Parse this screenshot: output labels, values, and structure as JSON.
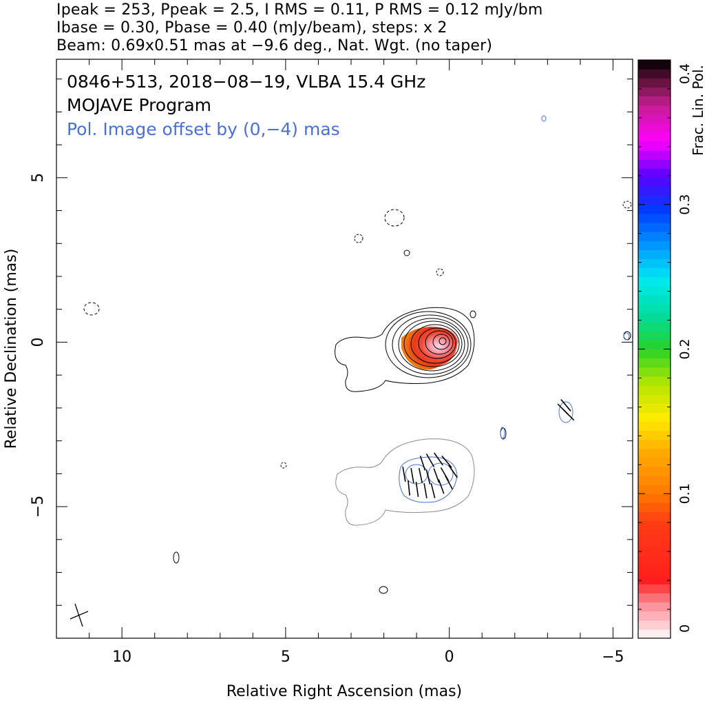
{
  "header": {
    "line1": "Ipeak = 253, Ppeak = 2.5, I RMS = 0.11, P RMS = 0.12 mJy/bm",
    "line2": "Ibase = 0.30, Pbase = 0.40 (mJy/beam), steps: x 2",
    "line3": "Beam: 0.69x0.51 mas at −9.6 deg., Nat. Wgt. (no taper)"
  },
  "annotations": {
    "line1": "0846+513, 2018−08−19, VLBA 15.4 GHz",
    "line2": "MOJAVE Program",
    "line3": "Pol. Image offset by (0,−4) mas",
    "line3_color": "#4a6fd6"
  },
  "chart_data": {
    "type": "contour",
    "xlabel": "Relative Right Ascension (mas)",
    "ylabel": "Relative Declination (mas)",
    "xlim": [
      12.0,
      -5.6
    ],
    "ylim": [
      -9.0,
      8.6
    ],
    "x_ticks": [
      {
        "value": 10,
        "label": "10"
      },
      {
        "value": 5,
        "label": "5"
      },
      {
        "value": 0,
        "label": "0"
      },
      {
        "value": -5,
        "label": "−5"
      }
    ],
    "y_ticks": [
      {
        "value": 5,
        "label": "5"
      },
      {
        "value": 0,
        "label": "0"
      },
      {
        "value": -5,
        "label": "−5"
      }
    ],
    "colorbar": {
      "label": "Frac. Lin. Pol.",
      "range": [
        0,
        0.4
      ],
      "ticks": [
        {
          "value": 0,
          "label": "0"
        },
        {
          "value": 0.1,
          "label": "0.1"
        },
        {
          "value": 0.2,
          "label": "0.2"
        },
        {
          "value": 0.3,
          "label": "0.3"
        },
        {
          "value": 0.4,
          "label": "0.4"
        }
      ]
    },
    "total_intensity_contours": {
      "center": [
        0.0,
        0.0
      ],
      "levels_mjy": [
        0.3,
        0.6,
        1.2,
        2.4,
        4.8,
        9.6,
        19.2,
        38.4,
        76.8,
        153.6
      ]
    },
    "polarization_image": {
      "offset_mas": [
        0,
        -4
      ],
      "evpa_sticks_center": [
        0.6,
        -4.1
      ]
    },
    "fractional_polarization_regions": [
      {
        "x": 0.1,
        "y": 0.0,
        "value": 0.03
      },
      {
        "x": -0.8,
        "y": -0.3,
        "value": 0.07
      }
    ],
    "beam": {
      "major_mas": 0.69,
      "minor_mas": 0.51,
      "pa_deg": -9.6
    }
  }
}
